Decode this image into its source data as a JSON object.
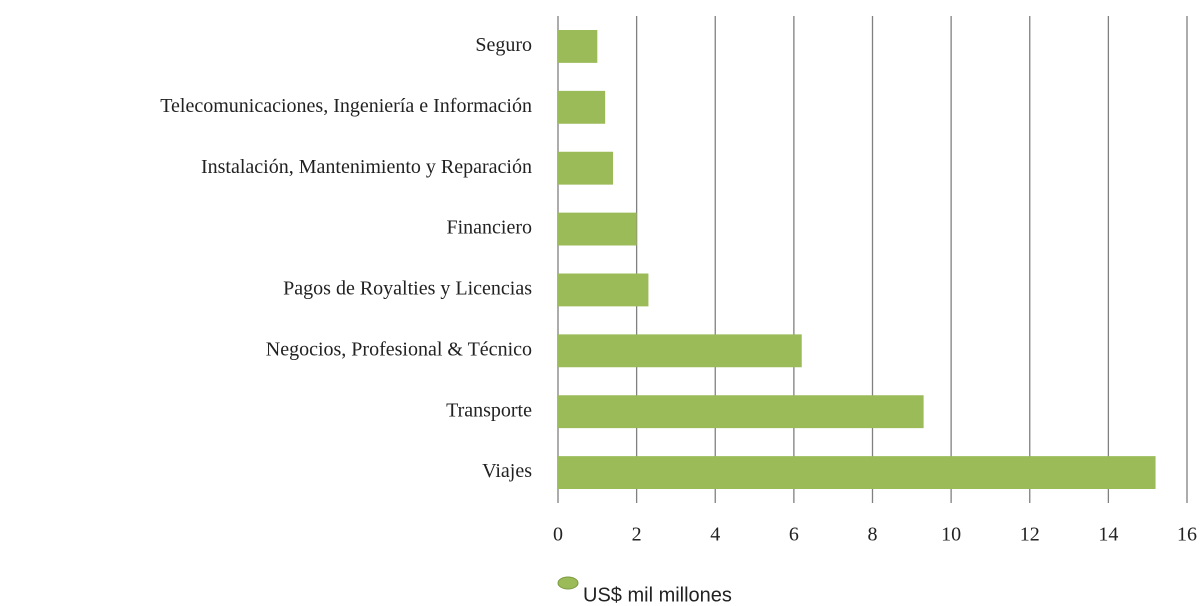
{
  "chart_data": {
    "type": "barh",
    "categories": [
      "Seguro",
      "Telecomunicaciones, Ingeniería e Información",
      "Instalación, Mantenimiento y Reparación",
      "Financiero",
      "Pagos de Royalties y Licencias",
      "Negocios, Profesional & Técnico",
      "Transporte",
      "Viajes"
    ],
    "series": [
      {
        "name": "US$ mil millones",
        "color": "#9bbb59",
        "values": [
          1.0,
          1.2,
          1.4,
          2.0,
          2.3,
          6.2,
          9.3,
          15.2
        ]
      }
    ],
    "xlim": [
      0,
      16
    ],
    "xticks": [
      0,
      2,
      4,
      6,
      8,
      10,
      12,
      14,
      16
    ],
    "grid": true,
    "legend": "bottom"
  }
}
